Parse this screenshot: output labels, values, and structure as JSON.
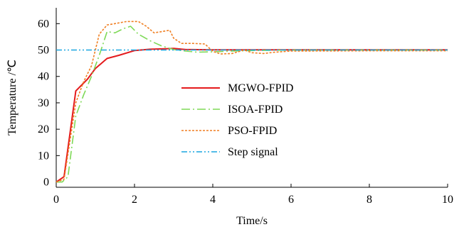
{
  "chart_data": {
    "type": "line",
    "xlabel": "Time/s",
    "ylabel": "Temperature /℃",
    "xlim": [
      0,
      10
    ],
    "ylim": [
      -2,
      66
    ],
    "xticks": [
      0,
      2,
      4,
      6,
      8,
      10
    ],
    "yticks": [
      0,
      10,
      20,
      30,
      40,
      50,
      60
    ],
    "grid": false,
    "legend_position": "center",
    "series": [
      {
        "name": "MGWO-FPID",
        "color": "#e41a1c",
        "style": "solid",
        "x": [
          0,
          0.2,
          0.5,
          0.8,
          1.0,
          1.3,
          1.6,
          2.0,
          2.4,
          2.8,
          3.0,
          3.3,
          4.0,
          5.0,
          6.0,
          8.0,
          10.0
        ],
        "y": [
          0,
          2,
          34.5,
          39,
          43,
          46.8,
          48,
          49.8,
          50.3,
          50.5,
          50.6,
          50.2,
          50.1,
          50.1,
          50.1,
          50.1,
          50.1
        ]
      },
      {
        "name": "ISOA-FPID",
        "color": "#7ed957",
        "style": "dashdot",
        "x": [
          0,
          0.15,
          0.3,
          0.5,
          0.7,
          0.9,
          1.1,
          1.3,
          1.5,
          1.7,
          1.9,
          2.1,
          2.4,
          2.7,
          3.0,
          3.3,
          3.6,
          4.0,
          4.5,
          5.0,
          6.0,
          8.0,
          10.0
        ],
        "y": [
          0,
          0,
          2,
          25,
          33,
          40,
          48,
          57,
          56.5,
          58,
          59,
          56,
          53.5,
          51.5,
          50.2,
          49.6,
          49.2,
          49.3,
          49.6,
          49.8,
          50,
          50,
          50
        ]
      },
      {
        "name": "PSO-FPID",
        "color": "#f07f22",
        "style": "dotted",
        "x": [
          0,
          0.2,
          0.5,
          0.7,
          0.9,
          1.0,
          1.1,
          1.3,
          1.5,
          1.8,
          2.1,
          2.3,
          2.5,
          2.7,
          2.9,
          3.0,
          3.2,
          3.5,
          3.8,
          4.0,
          4.2,
          4.5,
          4.8,
          5.0,
          5.3,
          5.6,
          6.0,
          8.0,
          10.0
        ],
        "y": [
          0,
          1,
          30,
          38,
          44,
          50,
          56,
          59.5,
          60,
          60.8,
          60.8,
          59,
          56.5,
          57,
          57.5,
          54.5,
          52.5,
          52.5,
          52.3,
          49.5,
          48.5,
          48.7,
          50,
          49,
          48.7,
          49.2,
          49.6,
          49.7,
          49.7
        ]
      },
      {
        "name": "Step signal",
        "color": "#1aa6e0",
        "style": "dashdotdot",
        "x": [
          0,
          10
        ],
        "y": [
          50,
          50
        ]
      }
    ]
  }
}
